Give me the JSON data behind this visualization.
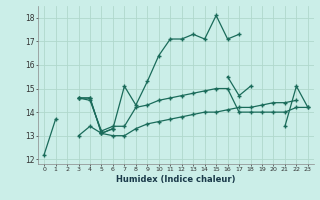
{
  "xlabel": "Humidex (Indice chaleur)",
  "bg_color": "#cbeee8",
  "grid_color": "#b0d8cc",
  "line_color": "#1a6b5a",
  "xlim": [
    -0.5,
    23.5
  ],
  "ylim": [
    11.8,
    18.5
  ],
  "yticks": [
    12,
    13,
    14,
    15,
    16,
    17,
    18
  ],
  "xticks": [
    0,
    1,
    2,
    3,
    4,
    5,
    6,
    7,
    8,
    9,
    10,
    11,
    12,
    13,
    14,
    15,
    16,
    17,
    18,
    19,
    20,
    21,
    22,
    23
  ],
  "lines": [
    [
      12.2,
      13.7,
      null,
      null,
      null,
      null,
      null,
      null,
      null,
      null,
      null,
      null,
      null,
      null,
      null,
      null,
      null,
      null,
      null,
      null,
      null,
      null,
      null,
      null
    ],
    [
      null,
      null,
      null,
      14.6,
      14.6,
      13.1,
      13.3,
      15.1,
      14.3,
      15.3,
      16.4,
      17.1,
      17.1,
      17.3,
      17.1,
      18.1,
      17.1,
      17.3,
      null,
      null,
      null,
      null,
      null,
      null
    ],
    [
      null,
      null,
      null,
      14.6,
      14.6,
      13.1,
      13.3,
      null,
      null,
      null,
      null,
      null,
      null,
      null,
      null,
      null,
      null,
      null,
      null,
      null,
      null,
      null,
      null,
      null
    ],
    [
      null,
      null,
      null,
      null,
      null,
      null,
      null,
      null,
      null,
      null,
      null,
      null,
      null,
      null,
      null,
      null,
      15.5,
      14.7,
      15.1,
      null,
      null,
      null,
      null,
      null
    ],
    [
      null,
      null,
      null,
      null,
      null,
      null,
      null,
      null,
      null,
      null,
      null,
      null,
      null,
      null,
      null,
      null,
      null,
      null,
      null,
      null,
      null,
      13.4,
      15.1,
      14.2
    ],
    [
      null,
      null,
      null,
      14.6,
      14.5,
      13.2,
      13.4,
      13.4,
      14.2,
      14.3,
      14.5,
      14.6,
      14.7,
      14.8,
      14.9,
      15.0,
      15.0,
      14.0,
      14.0,
      14.0,
      14.0,
      14.0,
      14.2,
      14.2
    ],
    [
      null,
      null,
      null,
      13.0,
      13.4,
      13.1,
      13.0,
      13.0,
      13.3,
      13.5,
      13.6,
      13.7,
      13.8,
      13.9,
      14.0,
      14.0,
      14.1,
      14.2,
      14.2,
      14.3,
      14.4,
      14.4,
      14.5,
      null
    ]
  ]
}
